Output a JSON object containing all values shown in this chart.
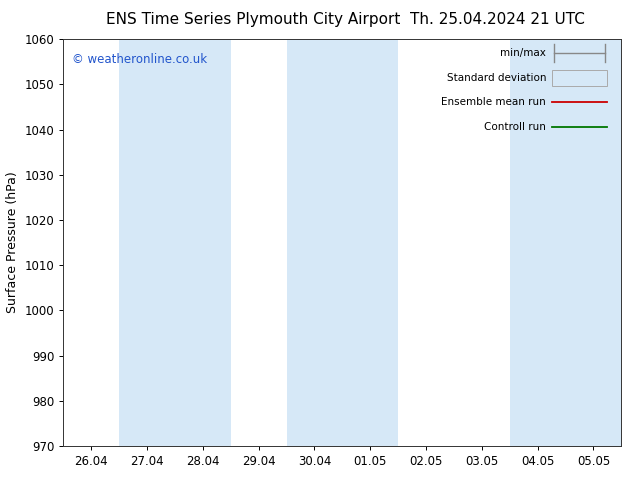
{
  "title_left": "ENS Time Series Plymouth City Airport",
  "title_right": "Th. 25.04.2024 21 UTC",
  "ylabel": "Surface Pressure (hPa)",
  "ylim": [
    970,
    1060
  ],
  "yticks": [
    970,
    980,
    990,
    1000,
    1010,
    1020,
    1030,
    1040,
    1050,
    1060
  ],
  "xtick_labels": [
    "26.04",
    "27.04",
    "28.04",
    "29.04",
    "30.04",
    "01.05",
    "02.05",
    "03.05",
    "04.05",
    "05.05"
  ],
  "n_xticks": 10,
  "shaded_band_indices": [
    1,
    2,
    4,
    5,
    8,
    9
  ],
  "shade_color": "#d6e8f7",
  "background_color": "#ffffff",
  "watermark": "© weatheronline.co.uk",
  "watermark_color": "#2255cc",
  "legend_labels": [
    "min/max",
    "Standard deviation",
    "Ensemble mean run",
    "Controll run"
  ],
  "ensemble_color": "#cc0000",
  "control_color": "#007700",
  "legend_box_color": "#d6e8f7",
  "legend_box_edge": "#aaaaaa",
  "legend_minmax_color": "#888888",
  "title_fontsize": 11,
  "tick_fontsize": 8.5,
  "ylabel_fontsize": 9,
  "figsize": [
    6.34,
    4.9
  ],
  "dpi": 100
}
